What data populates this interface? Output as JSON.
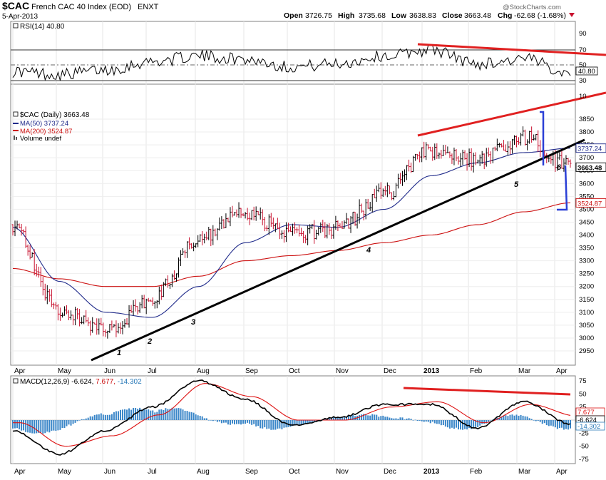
{
  "header": {
    "symbol": "$CAC",
    "name": "French CAC 40 Index (EOD)",
    "exchange": "ENXT",
    "date": "5-Apr-2013",
    "ohlc": {
      "open_label": "Open",
      "open": "3726.75",
      "high_label": "High",
      "high": "3735.68",
      "low_label": "Low",
      "low": "3638.83",
      "close_label": "Close",
      "close": "3663.48",
      "chg_label": "Chg",
      "chg": "-62.68 (-1.68%)"
    },
    "watermark": "@StockCharts.com"
  },
  "colors": {
    "up": "#000000",
    "down": "#c8102e",
    "ma50": "#1f2a8a",
    "ma200": "#cc1111",
    "trend_black": "#000000",
    "trend_red": "#e02020",
    "annotation_blue": "#2a3fd6",
    "macd_hist": "#3a86c8",
    "macd_line": "#000000",
    "macd_signal": "#dd1111"
  },
  "months": [
    "Apr",
    "May",
    "Jun",
    "Jul",
    "Aug",
    "Sep",
    "Oct",
    "Nov",
    "Dec",
    "2013",
    "Feb",
    "Mar",
    "Apr"
  ],
  "rsi": {
    "label": "RSI(14) 40.80",
    "last": "40.80",
    "ticks": [
      "90",
      "70",
      "50",
      "30",
      "10"
    ]
  },
  "price_panel": {
    "legend": [
      "$CAC (Daily) 3663.48",
      "MA(50) 3737.24",
      "MA(200) 3524.87",
      "Volume undef"
    ],
    "ticks": [
      "3850",
      "3800",
      "3750",
      "3700",
      "3650",
      "3600",
      "3550",
      "3500",
      "3450",
      "3400",
      "3350",
      "3300",
      "3250",
      "3200",
      "3150",
      "3100",
      "3050",
      "3000",
      "2950"
    ],
    "last_close": "3663.48",
    "ma50_last": "3737.24",
    "ma200_last": "3524.87",
    "wave_labels": [
      "1",
      "2",
      "3",
      "4",
      "5",
      "6"
    ]
  },
  "macd": {
    "label_main": "MACD(12,26,9)",
    "value_macd": "-6.624,",
    "value_signal": "7.677,",
    "value_hist": "-14.302",
    "ticks": [
      "75",
      "50",
      "25",
      "0",
      "-25",
      "-50",
      "-75"
    ],
    "last_signal": "7.677",
    "last_macd": "-6.624",
    "last_hist": "-14.302"
  },
  "chart_data": [
    {
      "type": "line",
      "name": "RSI(14)",
      "x": [
        "Apr",
        "May",
        "Jun",
        "Jul",
        "Aug",
        "Sep",
        "Oct",
        "Nov",
        "Dec",
        "2013",
        "Feb",
        "Mar",
        "Apr"
      ],
      "values": [
        42,
        38,
        44,
        55,
        62,
        58,
        48,
        52,
        62,
        70,
        52,
        58,
        40.8
      ],
      "ylim": [
        10,
        90
      ],
      "reference_lines": [
        70,
        50,
        30
      ]
    },
    {
      "type": "line",
      "name": "$CAC (Daily)",
      "x": [
        "Apr",
        "May",
        "Jun",
        "Jul",
        "Aug",
        "Sep",
        "Oct",
        "Nov",
        "Dec",
        "2013",
        "Feb",
        "Mar",
        "Apr"
      ],
      "values": [
        3440,
        3100,
        3030,
        3150,
        3380,
        3490,
        3400,
        3430,
        3560,
        3730,
        3690,
        3780,
        3663.48
      ],
      "ma50": [
        3430,
        3220,
        3100,
        3080,
        3200,
        3370,
        3440,
        3430,
        3500,
        3630,
        3680,
        3720,
        3737.24
      ],
      "ma200": [
        3270,
        3230,
        3200,
        3200,
        3240,
        3300,
        3320,
        3340,
        3370,
        3400,
        3440,
        3490,
        3524.87
      ],
      "ylim": [
        2920,
        3880
      ]
    },
    {
      "type": "line",
      "name": "MACD(12,26,9)",
      "x": [
        "Apr",
        "May",
        "Jun",
        "Jul",
        "Aug",
        "Sep",
        "Oct",
        "Nov",
        "Dec",
        "2013",
        "Feb",
        "Mar",
        "Apr"
      ],
      "macd": [
        -20,
        -65,
        -20,
        25,
        75,
        40,
        -10,
        5,
        30,
        30,
        -15,
        35,
        -6.624
      ],
      "signal": [
        -5,
        -50,
        -30,
        10,
        70,
        45,
        0,
        0,
        25,
        35,
        -5,
        30,
        7.677
      ],
      "histogram": [
        -15,
        -15,
        10,
        15,
        5,
        -5,
        -10,
        5,
        5,
        -5,
        -10,
        5,
        -14.302
      ],
      "ylim": [
        -85,
        85
      ]
    }
  ]
}
